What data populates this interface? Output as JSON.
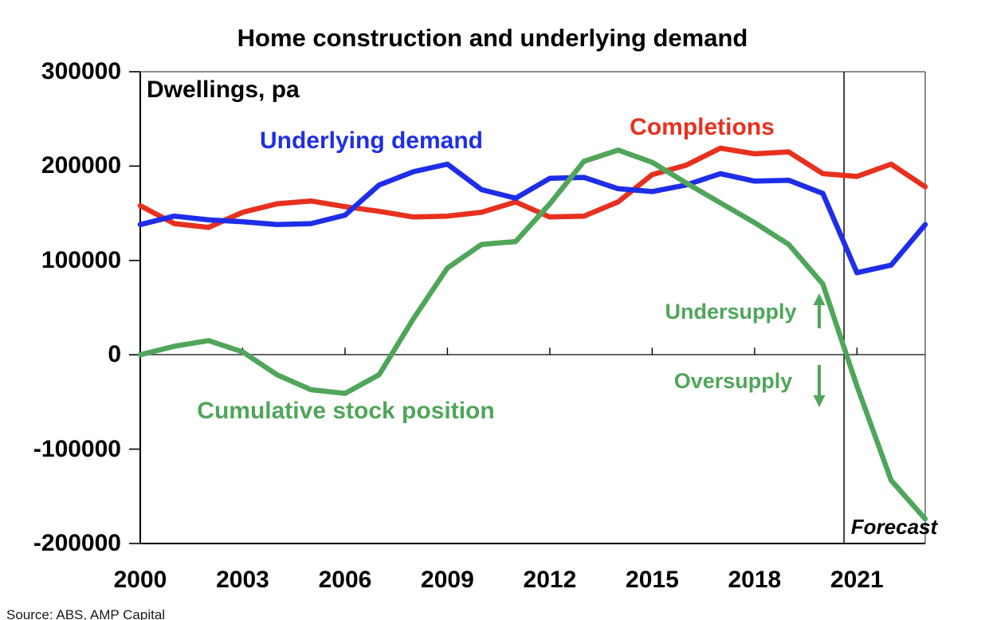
{
  "title": "Home construction and underlying demand",
  "axis_note": "Dwellings, pa",
  "source": "Source: ABS, AMP Capital",
  "annotations": {
    "undersupply": "Undersupply",
    "oversupply": "Oversupply",
    "forecast": "Forecast"
  },
  "colors": {
    "underlying_demand": "#1E2EE8",
    "completions": "#E8301F",
    "cumulative": "#4FA65A",
    "axis": "#000000",
    "frame": "#8c8c8c",
    "zero_line": "#333333",
    "forecast_line": "#1a1a1a"
  },
  "chart_data": {
    "type": "line",
    "title": "Home construction and underlying demand",
    "ylabel_inside": "Dwellings, pa",
    "xlim": [
      2000,
      2023
    ],
    "ylim": [
      -200000,
      300000
    ],
    "grid": false,
    "x": [
      2000,
      2001,
      2002,
      2003,
      2004,
      2005,
      2006,
      2007,
      2008,
      2009,
      2010,
      2011,
      2012,
      2013,
      2014,
      2015,
      2016,
      2017,
      2018,
      2019,
      2020,
      2021,
      2022,
      2023
    ],
    "series": [
      {
        "name": "Completions",
        "color": "#E8301F",
        "values": [
          158000,
          139000,
          135000,
          151000,
          160000,
          163000,
          157000,
          152000,
          146000,
          147000,
          151000,
          162000,
          146000,
          147000,
          162000,
          191000,
          201000,
          219000,
          213000,
          215000,
          192000,
          189000,
          202000,
          178000
        ]
      },
      {
        "name": "Underlying demand",
        "color": "#1E2EE8",
        "values": [
          138000,
          147000,
          143000,
          141000,
          138000,
          139000,
          148000,
          180000,
          194000,
          202000,
          175000,
          166000,
          187000,
          188000,
          176000,
          173000,
          180000,
          192000,
          184000,
          185000,
          171000,
          87000,
          95000,
          138000
        ]
      },
      {
        "name": "Cumulative stock position",
        "color": "#4FA65A",
        "values": [
          0,
          9000,
          15000,
          3000,
          -21000,
          -37000,
          -41000,
          -21000,
          38000,
          92000,
          117000,
          120000,
          160000,
          205000,
          217000,
          204000,
          182000,
          161000,
          140000,
          117000,
          75000,
          -33000,
          -133000,
          -174000
        ]
      }
    ],
    "y_ticks": [
      300000,
      200000,
      100000,
      0,
      -100000,
      -200000
    ],
    "y_tick_labels": [
      "300000",
      "200000",
      "100000",
      "0",
      "-100000",
      "-200000"
    ],
    "x_tick_years": [
      2000,
      2003,
      2006,
      2009,
      2012,
      2015,
      2018,
      2021
    ],
    "x_tick_labels": [
      "2000",
      "2003",
      "2006",
      "2009",
      "2012",
      "2015",
      "2018",
      "2021"
    ],
    "forecast_start": 2020.62,
    "legend_position": "labels-on-chart"
  }
}
